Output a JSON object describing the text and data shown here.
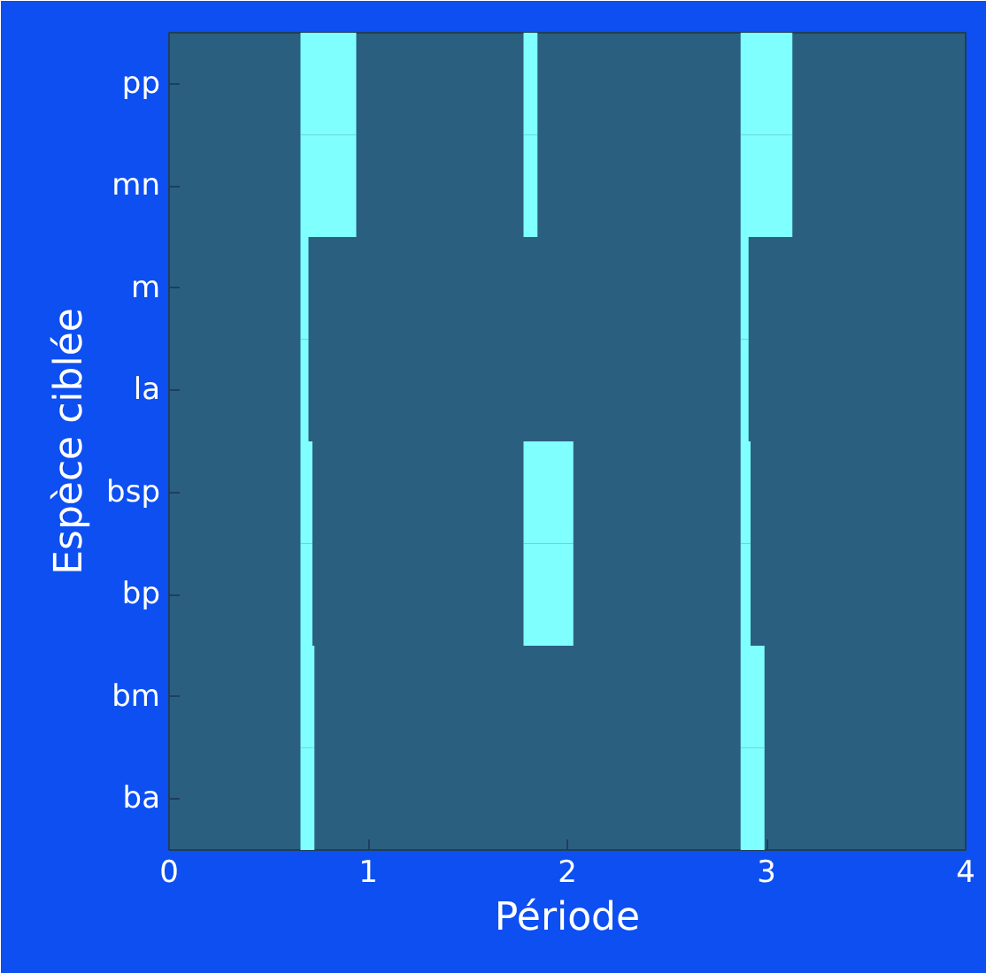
{
  "chart_data": {
    "type": "bar",
    "orientation": "horizontal",
    "xlabel": "Période",
    "ylabel": "Espèce ciblée",
    "categories": [
      "pp",
      "mn",
      "m",
      "la",
      "bsp",
      "bp",
      "bm",
      "ba"
    ],
    "series": [
      {
        "color": "#80ffff",
        "base": [
          0.66,
          0.66,
          0.66,
          0.66,
          0.66,
          0.66,
          0.66,
          0.66
        ],
        "values": [
          0.28,
          0.28,
          0.04,
          0.04,
          0.06,
          0.06,
          0.07,
          0.07
        ]
      },
      {
        "color": "#80ffff",
        "base": [
          1.78,
          1.78,
          null,
          null,
          1.78,
          1.78,
          null,
          null
        ],
        "values": [
          0.07,
          0.07,
          null,
          null,
          0.25,
          0.25,
          null,
          null
        ]
      },
      {
        "color": "#80ffff",
        "base": [
          2.87,
          2.87,
          2.87,
          2.87,
          2.87,
          2.87,
          2.87,
          2.87
        ],
        "values": [
          0.26,
          0.26,
          0.04,
          0.04,
          0.05,
          0.05,
          0.12,
          0.12
        ]
      }
    ],
    "xlim": [
      0,
      4
    ],
    "xticks": [
      0,
      1,
      2,
      3,
      4
    ],
    "grid": false
  }
}
